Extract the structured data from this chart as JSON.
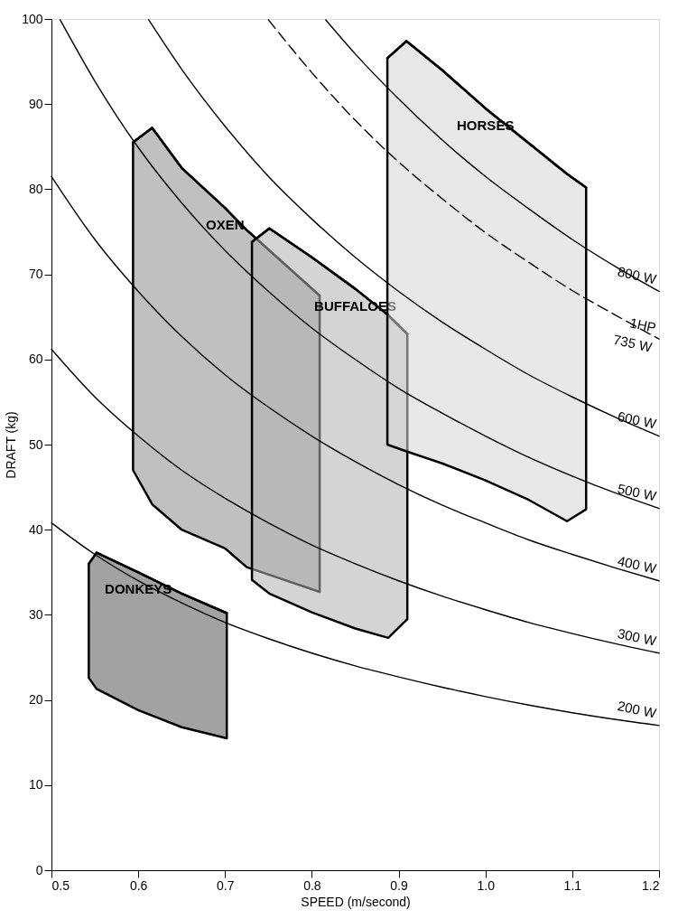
{
  "chart_data": {
    "type": "line",
    "xlabel": "SPEED (m/second)",
    "ylabel": "DRAFT (kg)",
    "xlim": [
      0.5,
      1.2
    ],
    "xticks": [
      0.5,
      0.6,
      0.7,
      0.8,
      0.9,
      {
        "value": 1,
        "label": "1.0"
      },
      1.1,
      1.2
    ],
    "ylim": [
      0,
      100
    ],
    "yticks": [
      0,
      10,
      20,
      30,
      40,
      50,
      60,
      70,
      80,
      90,
      100
    ],
    "grid": false,
    "legend": false,
    "marker": "none",
    "annotations": [
      {
        "text": "1HP",
        "x": 1.2,
        "y": 62.4
      }
    ],
    "series": [
      {
        "name": "OXEN",
        "color": "#000000",
        "x": [
          0.594,
          0.616,
          0.65,
          0.7,
          0.725,
          0.809
        ],
        "values": [
          85.5,
          87.2,
          82.5,
          77.8,
          75.2,
          67.5
        ],
        "upper": [
          85.5,
          87.2,
          82.5,
          77.8,
          75.2,
          67.5
        ],
        "lower": [
          47,
          43,
          40,
          37.8,
          35.6,
          32.7
        ]
      },
      {
        "name": "BUFFALOES",
        "color": "#000000",
        "x": [
          0.731,
          0.751,
          0.8,
          0.85,
          0.888,
          0.91
        ],
        "values": [
          73.8,
          75.4,
          72,
          68.3,
          65.2,
          63
        ],
        "upper": [
          73.8,
          75.4,
          72,
          68.3,
          65.2,
          63
        ],
        "lower": [
          34.1,
          32.5,
          30.3,
          28.4,
          27.3,
          29.5
        ]
      },
      {
        "name": "HORSES",
        "color": "#000000",
        "x": [
          0.887,
          0.909,
          0.95,
          1.0,
          1.05,
          1.094,
          1.116
        ],
        "values": [
          95.4,
          97.4,
          94,
          89.5,
          85.4,
          81.8,
          80.2
        ],
        "upper": [
          95.4,
          97.4,
          94,
          89.5,
          85.4,
          81.8,
          80.2
        ],
        "lower": [
          50,
          49.2,
          47.8,
          45.8,
          43.5,
          41,
          42.4
        ]
      },
      {
        "name": "DONKEYS",
        "color": "#000000",
        "x": [
          0.543,
          0.552,
          0.6,
          0.65,
          0.702
        ],
        "values": [
          36,
          37.3,
          35,
          32.5,
          30.2
        ],
        "upper": [
          36,
          37.3,
          35,
          32.5,
          30.2
        ],
        "lower": [
          22.6,
          21.3,
          18.8,
          16.8,
          15.5
        ]
      },
      {
        "name": "200 W",
        "color": "#000000",
        "line_style": "solid",
        "x": [
          0.5,
          0.55,
          0.6,
          0.65,
          0.7,
          0.75,
          0.8,
          0.85,
          0.9,
          0.95,
          1.0,
          1.05,
          1.1,
          1.15,
          1.2
        ],
        "values": [
          40.8,
          37.1,
          34.0,
          31.4,
          29.1,
          27.2,
          25.5,
          24.0,
          22.7,
          21.5,
          20.4,
          19.4,
          18.5,
          17.7,
          17.0
        ]
      },
      {
        "name": "300 W",
        "color": "#000000",
        "line_style": "solid",
        "x": [
          0.5,
          0.55,
          0.6,
          0.65,
          0.7,
          0.75,
          0.8,
          0.85,
          0.9,
          0.95,
          1.0,
          1.05,
          1.1,
          1.15,
          1.2
        ],
        "values": [
          61.2,
          55.6,
          51.0,
          47.0,
          43.7,
          40.8,
          38.2,
          36.0,
          34.0,
          32.2,
          30.6,
          29.1,
          27.8,
          26.6,
          25.5
        ]
      },
      {
        "name": "400 W",
        "color": "#000000",
        "line_style": "solid",
        "x": [
          0.5,
          0.55,
          0.6,
          0.65,
          0.7,
          0.75,
          0.8,
          0.85,
          0.9,
          0.95,
          1.0,
          1.05,
          1.1,
          1.15,
          1.2
        ],
        "values": [
          81.5,
          74.1,
          68.0,
          62.7,
          58.2,
          54.4,
          51.0,
          48.0,
          45.3,
          42.9,
          40.8,
          38.8,
          37.1,
          35.5,
          34.0
        ]
      },
      {
        "name": "500 W",
        "color": "#000000",
        "line_style": "solid",
        "x": [
          0.51,
          0.55,
          0.6,
          0.65,
          0.7,
          0.75,
          0.8,
          0.85,
          0.9,
          0.95,
          1.0,
          1.05,
          1.1,
          1.15,
          1.2
        ],
        "values": [
          99.9,
          92.7,
          84.9,
          78.4,
          72.8,
          68.0,
          63.7,
          60.0,
          56.6,
          53.7,
          51.0,
          48.5,
          46.3,
          44.3,
          42.5
        ]
      },
      {
        "name": "600 W",
        "color": "#000000",
        "line_style": "solid",
        "x": [
          0.612,
          0.65,
          0.7,
          0.75,
          0.8,
          0.85,
          0.9,
          0.95,
          1.0,
          1.05,
          1.1,
          1.15,
          1.2
        ],
        "values": [
          99.9,
          94.1,
          87.4,
          81.5,
          76.5,
          72.0,
          68.0,
          64.4,
          61.2,
          58.2,
          55.6,
          53.2,
          51.0
        ]
      },
      {
        "name": "735 W",
        "color": "#000000",
        "line_style": "dashed",
        "x": [
          0.75,
          0.8,
          0.85,
          0.9,
          0.95,
          1.0,
          1.05,
          1.1,
          1.15,
          1.2
        ],
        "values": [
          99.9,
          93.7,
          88.1,
          83.2,
          78.9,
          74.9,
          71.4,
          68.1,
          65.2,
          62.4
        ]
      },
      {
        "name": "800 W",
        "color": "#000000",
        "line_style": "solid",
        "x": [
          0.816,
          0.85,
          0.9,
          0.95,
          1.0,
          1.05,
          1.1,
          1.15,
          1.2
        ],
        "values": [
          99.9,
          95.9,
          90.6,
          85.8,
          81.5,
          77.7,
          74.1,
          70.9,
          68.0
        ]
      }
    ]
  }
}
